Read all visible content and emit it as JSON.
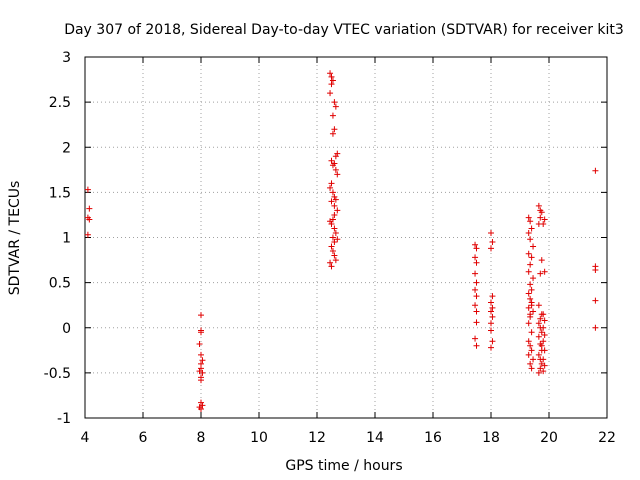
{
  "chart_data": {
    "type": "scatter",
    "title": "Day 307 of 2018, Sidereal Day-to-day VTEC variation (SDTVAR) for receiver kit3",
    "xlabel": "GPS time / hours",
    "ylabel": "SDTVAR / TECUs",
    "xlim": [
      4,
      22
    ],
    "ylim": [
      -1,
      3
    ],
    "xticks": [
      4,
      6,
      8,
      10,
      12,
      14,
      16,
      18,
      20,
      22
    ],
    "yticks": [
      -1,
      -0.5,
      0,
      0.5,
      1,
      1.5,
      2,
      2.5,
      3
    ],
    "grid": true,
    "marker": "+",
    "color": "#e00000",
    "series": [
      {
        "name": "SDTVAR",
        "x": [
          4.1,
          4.15,
          4.1,
          4.15,
          4.1,
          8.0,
          8.0,
          8.0,
          7.95,
          8.0,
          8.05,
          8.0,
          8.0,
          7.95,
          8.05,
          8.0,
          8.0,
          8.0,
          8.05,
          7.95,
          8.0,
          12.45,
          12.5,
          12.55,
          12.5,
          12.45,
          12.6,
          12.65,
          12.55,
          12.6,
          12.55,
          12.7,
          12.65,
          12.5,
          12.6,
          12.55,
          12.65,
          12.7,
          12.5,
          12.45,
          12.55,
          12.6,
          12.65,
          12.5,
          12.7,
          12.6,
          12.55,
          12.45,
          12.5,
          12.6,
          12.65,
          12.55,
          12.7,
          12.6,
          12.5,
          12.55,
          12.6,
          12.65,
          12.45,
          12.5,
          12.6,
          17.45,
          17.5,
          17.45,
          17.5,
          17.45,
          17.5,
          17.45,
          17.5,
          17.45,
          17.5,
          17.5,
          17.45,
          17.5,
          18.0,
          18.05,
          18.0,
          18.05,
          18.0,
          18.05,
          18.0,
          18.05,
          18.0,
          18.0,
          18.05,
          18.0,
          19.3,
          19.35,
          19.4,
          19.3,
          19.35,
          19.45,
          19.3,
          19.4,
          19.35,
          19.3,
          19.45,
          19.35,
          19.4,
          19.3,
          19.35,
          19.4,
          19.3,
          19.45,
          19.35,
          19.4,
          19.3,
          19.35,
          19.4,
          19.3,
          19.45,
          19.35,
          19.4,
          19.3,
          19.35,
          19.4,
          19.65,
          19.7,
          19.75,
          19.7,
          19.65,
          19.75,
          19.7,
          19.65,
          19.75,
          19.7,
          19.65,
          19.7,
          19.75,
          19.65,
          19.7,
          19.75,
          19.65,
          19.7,
          19.75,
          19.7,
          19.65,
          19.75,
          19.85,
          19.8,
          19.85,
          19.8,
          19.85,
          19.8,
          19.85,
          19.8,
          19.85,
          19.8,
          19.85,
          19.8,
          21.6,
          21.6,
          21.6,
          21.6,
          21.6
        ],
        "y": [
          1.53,
          1.32,
          1.22,
          1.2,
          1.03,
          0.14,
          -0.03,
          -0.05,
          -0.18,
          -0.3,
          -0.36,
          -0.4,
          -0.45,
          -0.48,
          -0.5,
          -0.55,
          -0.58,
          -0.83,
          -0.86,
          -0.88,
          -0.9,
          2.82,
          2.78,
          2.74,
          2.7,
          2.6,
          2.5,
          2.45,
          2.35,
          2.2,
          2.15,
          1.93,
          1.9,
          1.85,
          1.82,
          1.8,
          1.75,
          1.7,
          1.6,
          1.55,
          1.5,
          1.45,
          1.42,
          1.4,
          1.3,
          1.25,
          1.2,
          1.18,
          1.15,
          1.1,
          1.05,
          1.0,
          0.98,
          0.95,
          0.9,
          0.85,
          0.8,
          0.75,
          0.72,
          0.68,
          1.35,
          0.92,
          0.88,
          0.78,
          0.72,
          0.6,
          0.5,
          0.42,
          0.35,
          0.25,
          0.18,
          0.06,
          -0.12,
          -0.2,
          1.05,
          0.95,
          0.88,
          0.35,
          0.28,
          0.22,
          0.18,
          0.12,
          0.05,
          -0.03,
          -0.15,
          -0.22,
          1.22,
          1.18,
          1.1,
          1.05,
          0.98,
          0.9,
          0.82,
          0.78,
          0.7,
          0.62,
          0.55,
          0.48,
          0.42,
          0.38,
          0.32,
          0.28,
          0.22,
          0.18,
          0.12,
          -0.05,
          -0.15,
          -0.2,
          -0.25,
          -0.3,
          -0.35,
          -0.4,
          -0.45,
          0.05,
          0.15,
          0.25,
          1.35,
          1.3,
          1.28,
          1.22,
          1.15,
          0.75,
          0.6,
          0.25,
          0.15,
          0.1,
          0.05,
          0.0,
          -0.05,
          -0.1,
          -0.18,
          -0.25,
          -0.3,
          -0.35,
          -0.4,
          -0.45,
          -0.5,
          -0.2,
          1.2,
          1.15,
          0.62,
          0.15,
          0.08,
          0.0,
          -0.08,
          -0.15,
          -0.25,
          -0.35,
          -0.42,
          -0.48,
          1.74,
          0.68,
          0.64,
          0.3,
          0.0
        ]
      }
    ]
  }
}
